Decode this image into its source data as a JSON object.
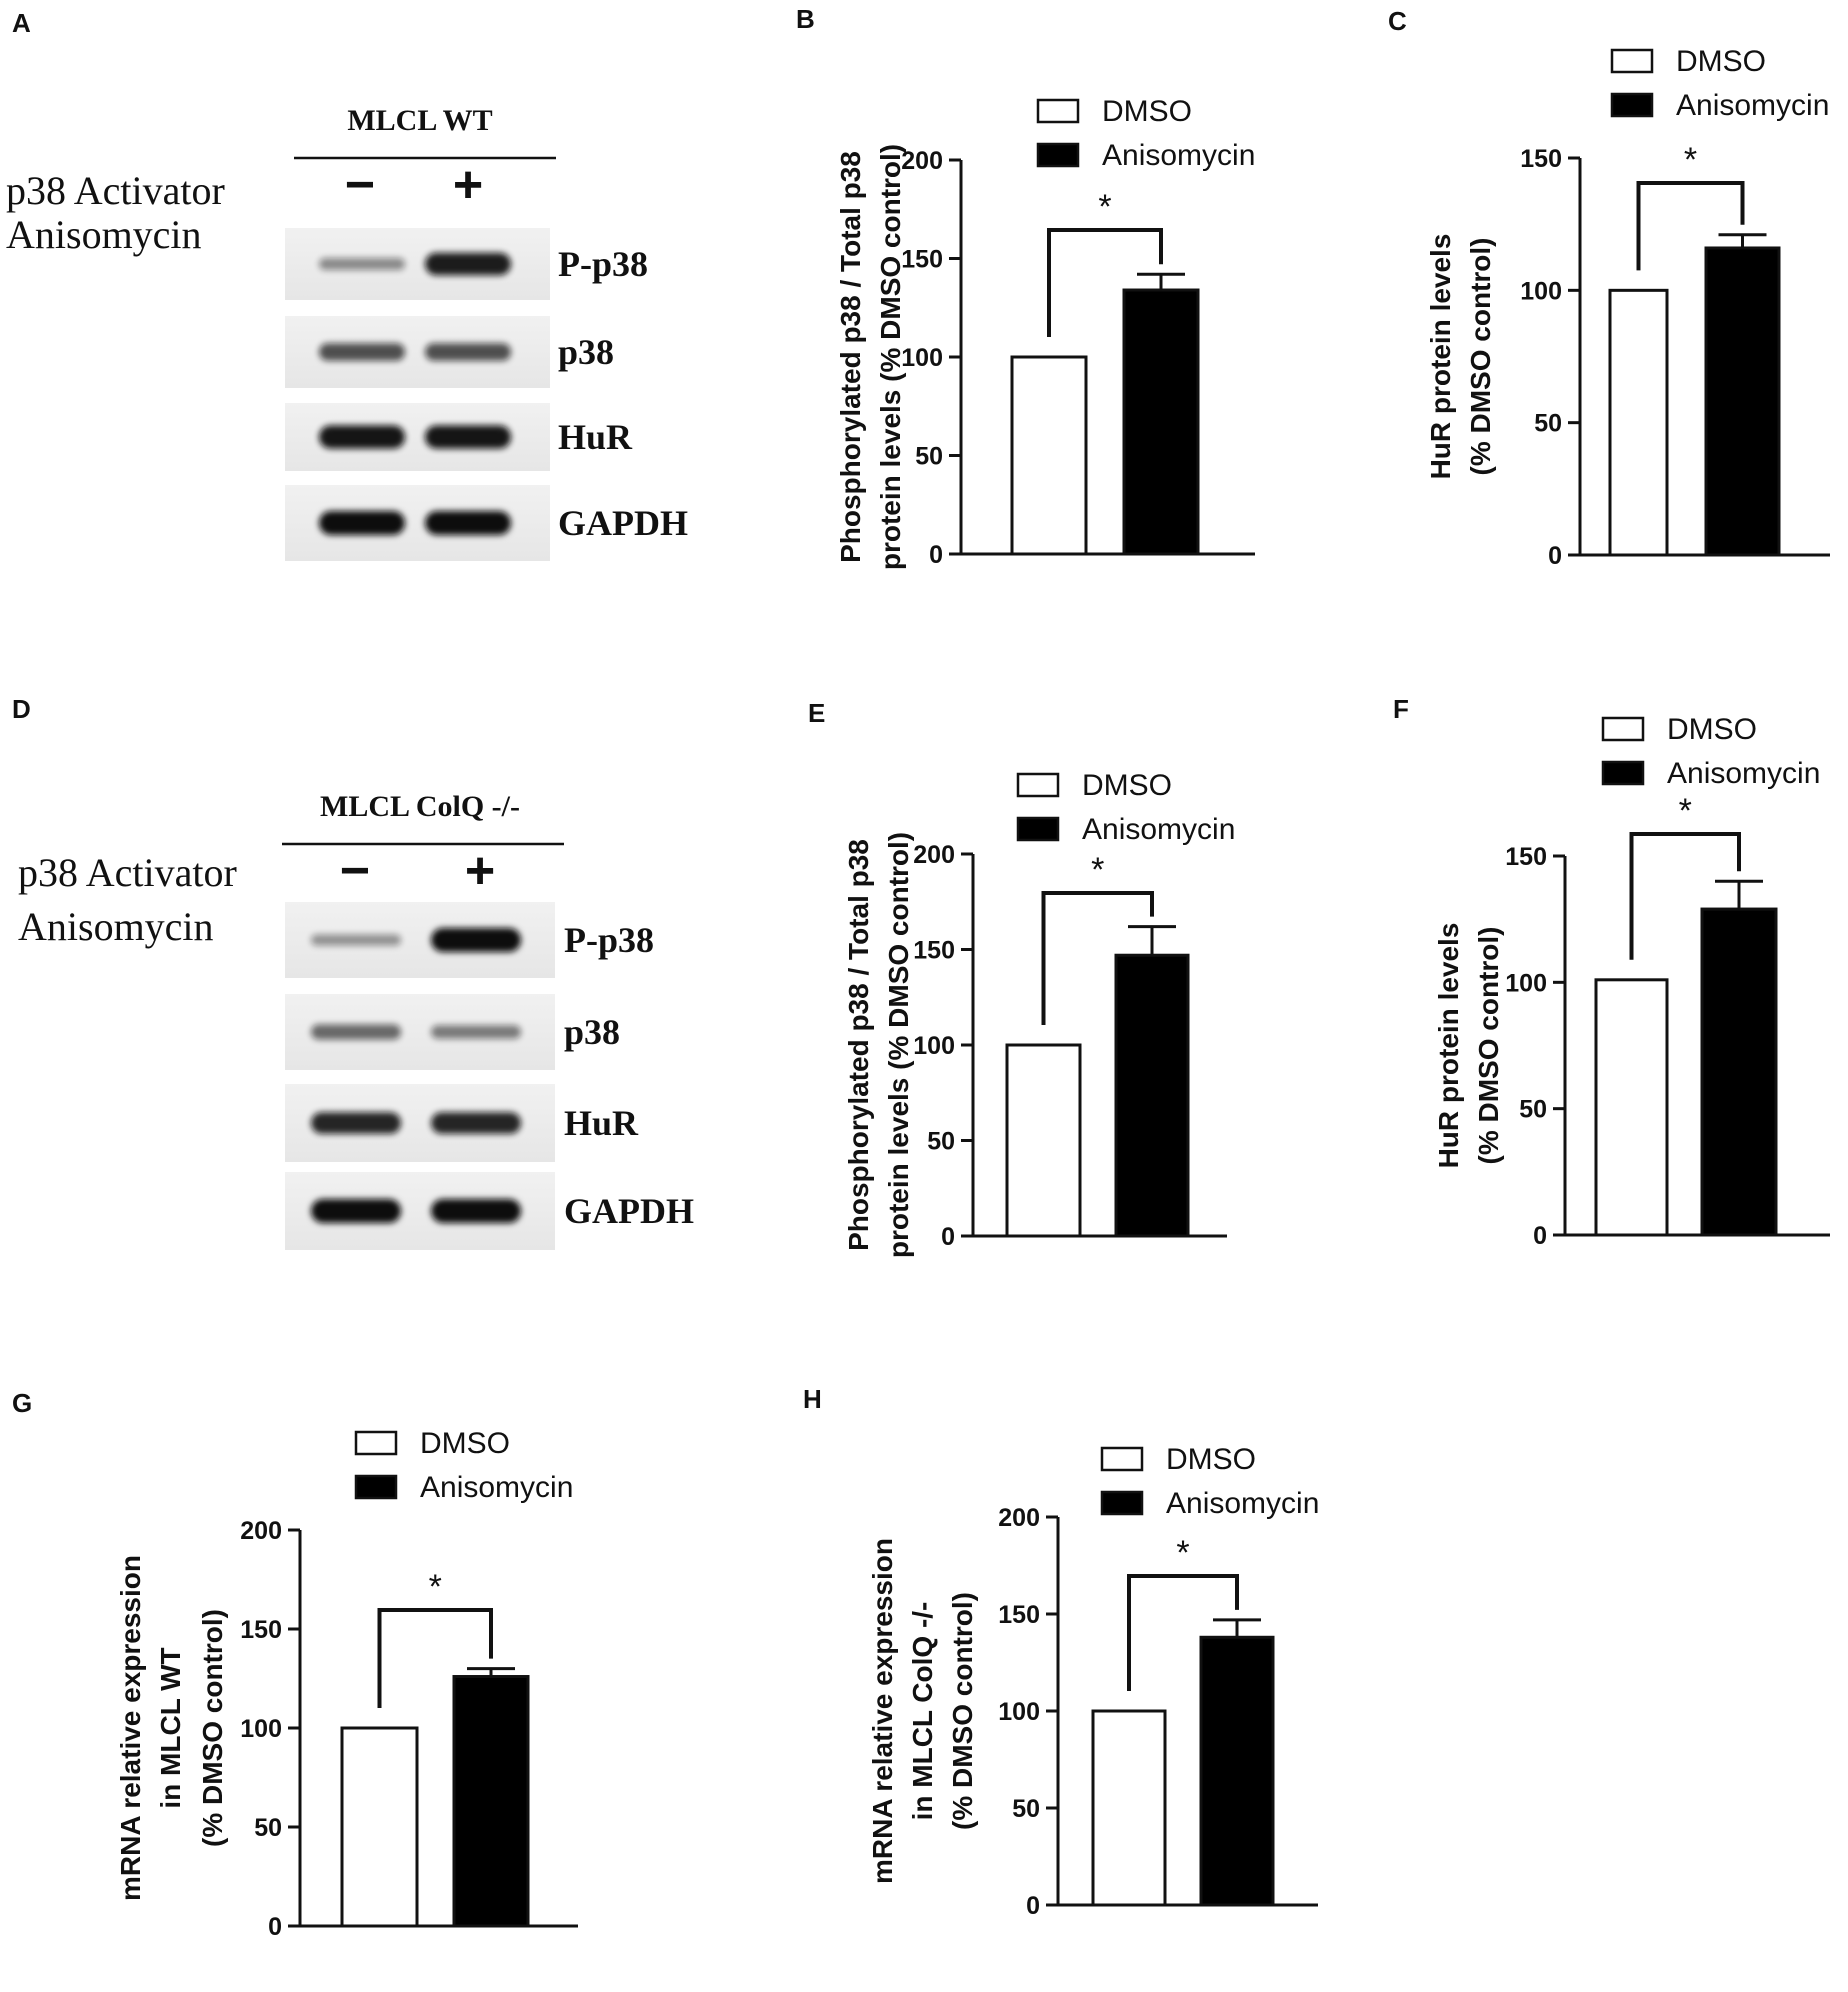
{
  "panel_letters": [
    "A",
    "B",
    "C",
    "D",
    "E",
    "F",
    "G",
    "H"
  ],
  "legend": {
    "control": "DMSO",
    "treated": "Anisomycin"
  },
  "significance_mark": "*",
  "blots": [
    {
      "id": "A",
      "cell_line": "MLCL WT",
      "treatment_label_line1": "p38 Activator",
      "treatment_label_line2": "Anisomycin",
      "lane_signs": [
        "−",
        "+"
      ],
      "bands": [
        {
          "name": "P-p38",
          "intensity": [
            0.25,
            0.9
          ]
        },
        {
          "name": "p38",
          "intensity": [
            0.6,
            0.6
          ]
        },
        {
          "name": "HuR",
          "intensity": [
            0.95,
            0.95
          ]
        },
        {
          "name": "GAPDH",
          "intensity": [
            1.0,
            1.0
          ]
        }
      ]
    },
    {
      "id": "D",
      "cell_line": "MLCL ColQ -/-",
      "treatment_label_line1": "p38 Activator",
      "treatment_label_line2": "Anisomycin",
      "lane_signs": [
        "−",
        "+"
      ],
      "bands": [
        {
          "name": "P-p38",
          "intensity": [
            0.2,
            1.0
          ]
        },
        {
          "name": "p38",
          "intensity": [
            0.45,
            0.35
          ]
        },
        {
          "name": "HuR",
          "intensity": [
            0.85,
            0.85
          ]
        },
        {
          "name": "GAPDH",
          "intensity": [
            1.0,
            1.0
          ]
        }
      ]
    }
  ],
  "chart_data": [
    {
      "id": "B",
      "type": "bar",
      "categories": [
        "DMSO",
        "Anisomycin"
      ],
      "values": [
        100,
        134
      ],
      "errors": [
        0,
        8
      ],
      "ylabel_lines": [
        "Phosphorylated p38 / Total p38",
        "protein levels (% DMSO control)"
      ],
      "ylim": [
        0,
        200
      ],
      "yticks": [
        "0",
        "50",
        "100",
        "150",
        "200"
      ]
    },
    {
      "id": "C",
      "type": "bar",
      "categories": [
        "DMSO",
        "Anisomycin"
      ],
      "values": [
        100,
        116
      ],
      "errors": [
        0,
        5
      ],
      "ylabel_lines": [
        "HuR protein levels",
        "(% DMSO control)"
      ],
      "ylim": [
        0,
        150
      ],
      "yticks": [
        "0",
        "50",
        "100",
        "150"
      ]
    },
    {
      "id": "E",
      "type": "bar",
      "categories": [
        "DMSO",
        "Anisomycin"
      ],
      "values": [
        100,
        147
      ],
      "errors": [
        0,
        15
      ],
      "ylabel_lines": [
        "Phosphorylated p38 / Total p38",
        "protein levels (% DMSO control)"
      ],
      "ylim": [
        0,
        200
      ],
      "yticks": [
        "0",
        "50",
        "100",
        "150",
        "200"
      ]
    },
    {
      "id": "F",
      "type": "bar",
      "categories": [
        "DMSO",
        "Anisomycin"
      ],
      "values": [
        101,
        129
      ],
      "errors": [
        0,
        11
      ],
      "ylabel_lines": [
        "HuR protein levels",
        "(% DMSO control)"
      ],
      "ylim": [
        0,
        150
      ],
      "yticks": [
        "0",
        "50",
        "100",
        "150"
      ]
    },
    {
      "id": "G",
      "type": "bar",
      "categories": [
        "DMSO",
        "Anisomycin"
      ],
      "values": [
        100,
        126
      ],
      "errors": [
        0,
        4
      ],
      "ylabel_lines": [
        "mRNA relative expression",
        "in MLCL WT",
        "(% DMSO control)"
      ],
      "ylim": [
        0,
        200
      ],
      "yticks": [
        "0",
        "50",
        "100",
        "150",
        "200"
      ]
    },
    {
      "id": "H",
      "type": "bar",
      "categories": [
        "DMSO",
        "Anisomycin"
      ],
      "values": [
        100,
        138
      ],
      "errors": [
        0,
        9
      ],
      "ylabel_lines": [
        "mRNA relative expression",
        "in MLCL ColQ -/-",
        "(% DMSO control)"
      ],
      "ylim": [
        0,
        200
      ],
      "yticks": [
        "0",
        "50",
        "100",
        "150",
        "200"
      ]
    }
  ]
}
